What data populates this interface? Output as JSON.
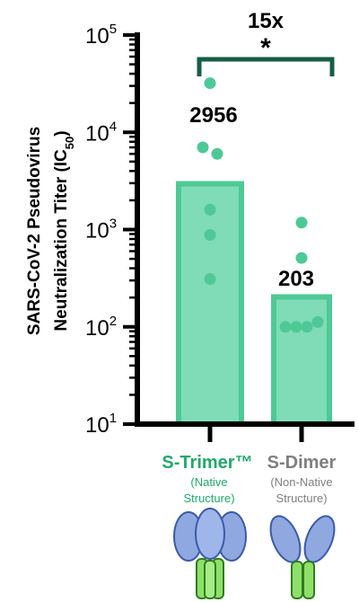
{
  "colors": {
    "bar_fill": "#7fdcb6",
    "bar_stroke": "#4ec996",
    "point": "#4ec996",
    "axis": "#000000",
    "bracket": "#155e45",
    "trimer_label": "#22a86a",
    "dimer_label": "#7f7f7f",
    "head_fill": "#8fa8e0",
    "stem_fill": "#8fe06a"
  },
  "significance": {
    "fold": "15x",
    "marker": "*"
  },
  "categories": [
    {
      "name": "S-Trimer™",
      "sub1": "(Native",
      "sub2": "Structure)",
      "icon": "trimer-icon"
    },
    {
      "name": "S-Dimer",
      "sub1": "(Non-Native",
      "sub2": "Structure)",
      "icon": "dimer-icon"
    }
  ],
  "chart_data": {
    "type": "bar",
    "yscale": "log",
    "ylim": [
      10,
      100000
    ],
    "ylabel_line1": "SARS-CoV-2 Pseudovirus",
    "ylabel_line2": "Neutralization Titer (IC50)",
    "yticks": [
      {
        "base": "10",
        "exp": "1",
        "value": 10
      },
      {
        "base": "10",
        "exp": "2",
        "value": 100
      },
      {
        "base": "10",
        "exp": "3",
        "value": 1000
      },
      {
        "base": "10",
        "exp": "4",
        "value": 10000
      },
      {
        "base": "10",
        "exp": "5",
        "value": 100000
      }
    ],
    "categories": [
      "S-Trimer™",
      "S-Dimer"
    ],
    "values": [
      2956,
      203
    ],
    "value_labels": [
      "2956",
      "203"
    ],
    "points": [
      [
        32000,
        7000,
        6000,
        1600,
        880,
        310
      ],
      [
        1180,
        510,
        100,
        100,
        100,
        112
      ]
    ]
  }
}
